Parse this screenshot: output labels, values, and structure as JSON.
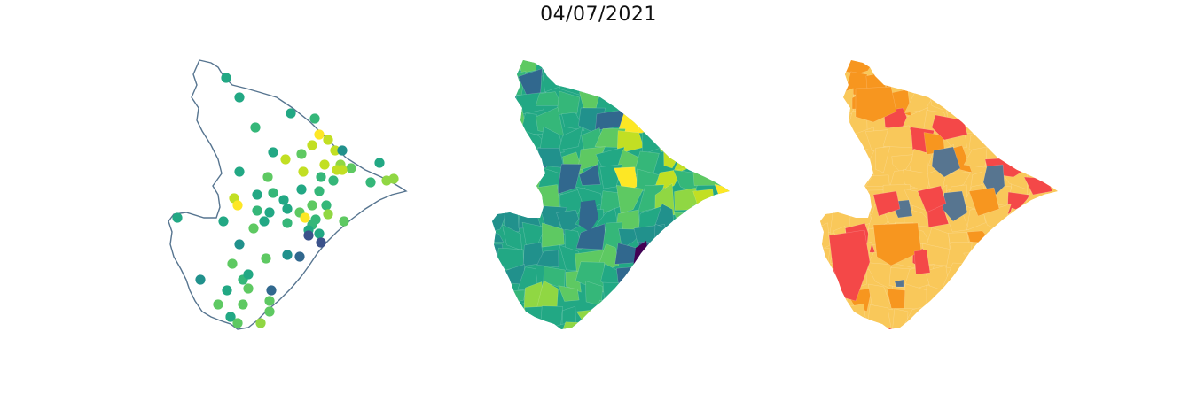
{
  "title": "04/07/2021",
  "maps": [
    {
      "id": "points",
      "style": "outline-with-point-markers",
      "colormap": "viridis"
    },
    {
      "id": "choropleth",
      "style": "municipality-fill",
      "colormap": "viridis"
    },
    {
      "id": "classified",
      "style": "municipality-fill-classes",
      "class_colors": [
        "#f9c85a",
        "#f7961f",
        "#f44848",
        "#577590"
      ]
    }
  ],
  "colors": {
    "outline": "#577590",
    "viridis": [
      "#440154",
      "#3b528b",
      "#31688e",
      "#21918c",
      "#22a884",
      "#35b779",
      "#5ec962",
      "#90d743",
      "#c2df23",
      "#fde725"
    ]
  }
}
